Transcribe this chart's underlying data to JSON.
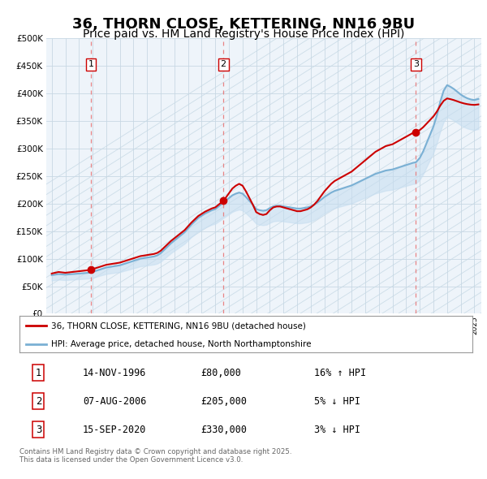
{
  "title": "36, THORN CLOSE, KETTERING, NN16 9BU",
  "subtitle": "Price paid vs. HM Land Registry's House Price Index (HPI)",
  "sale_dates_num": [
    1996.88,
    2006.59,
    2020.71
  ],
  "sale_prices": [
    80000,
    205000,
    330000
  ],
  "sale_labels": [
    "1",
    "2",
    "3"
  ],
  "red_line_color": "#cc0000",
  "blue_line_color": "#7ab0d4",
  "blue_fill_color": "#c5ddf0",
  "vline_color": "#e87878",
  "background_color": "#ffffff",
  "plot_bg_color": "#eef4fa",
  "hatch_color": "#ccdde8",
  "grid_color": "#c8d8e4",
  "ylim": [
    0,
    500000
  ],
  "yticks": [
    0,
    50000,
    100000,
    150000,
    200000,
    250000,
    300000,
    350000,
    400000,
    450000,
    500000
  ],
  "xlim_start": 1993.6,
  "xlim_end": 2025.5,
  "legend_entries": [
    "36, THORN CLOSE, KETTERING, NN16 9BU (detached house)",
    "HPI: Average price, detached house, North Northamptonshire"
  ],
  "table_data": [
    [
      "1",
      "14-NOV-1996",
      "£80,000",
      "16% ↑ HPI"
    ],
    [
      "2",
      "07-AUG-2006",
      "£205,000",
      "5% ↓ HPI"
    ],
    [
      "3",
      "15-SEP-2020",
      "£330,000",
      "3% ↓ HPI"
    ]
  ],
  "footnote": "Contains HM Land Registry data © Crown copyright and database right 2025.\nThis data is licensed under the Open Government Licence v3.0."
}
